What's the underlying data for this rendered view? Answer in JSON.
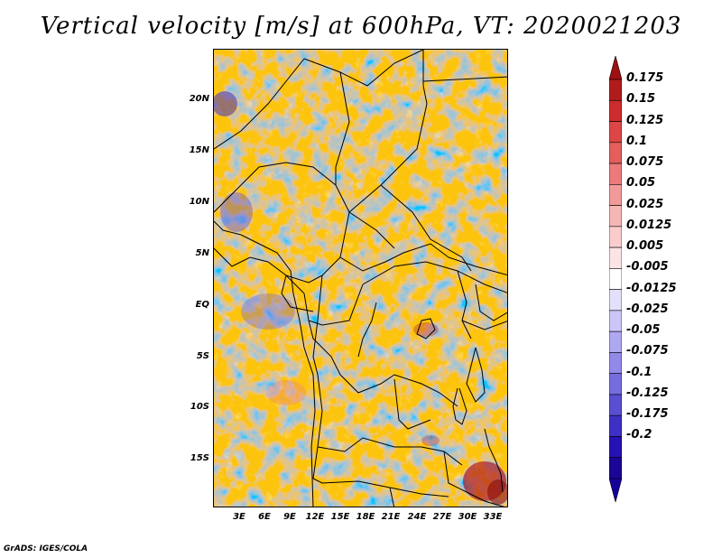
{
  "title": "Vertical velocity [m/s] at 600hPa, VT: 2020021203",
  "credit": "GrADS: IGES/COLA",
  "map": {
    "lat_labels": [
      "20N",
      "15N",
      "10N",
      "5N",
      "EQ",
      "5S",
      "10S",
      "15S"
    ],
    "lon_labels": [
      "3E",
      "6E",
      "9E",
      "12E",
      "15E",
      "18E",
      "21E",
      "24E",
      "27E",
      "30E",
      "33E"
    ]
  },
  "colorbar": {
    "labels": [
      "0.175",
      "0.15",
      "0.125",
      "0.1",
      "0.075",
      "0.05",
      "0.025",
      "0.0125",
      "0.005",
      "-0.005",
      "-0.0125",
      "-0.025",
      "-0.05",
      "-0.075",
      "-0.1",
      "-0.125",
      "-0.175",
      "-0.2"
    ],
    "colors": [
      "#b01c1c",
      "#cc2c2c",
      "#dc4646",
      "#e45e5e",
      "#ec7a7a",
      "#f29a9a",
      "#f6b6b6",
      "#facccc",
      "#fde4e4",
      "#ffffff",
      "#e2e0fb",
      "#cac6f6",
      "#aea8f0",
      "#928ae8",
      "#766cde",
      "#5a4ed2",
      "#3e30c4",
      "#2612b2",
      "#1a0696"
    ],
    "top_cap": "#a01010",
    "bottom_cap": "#14009a"
  }
}
